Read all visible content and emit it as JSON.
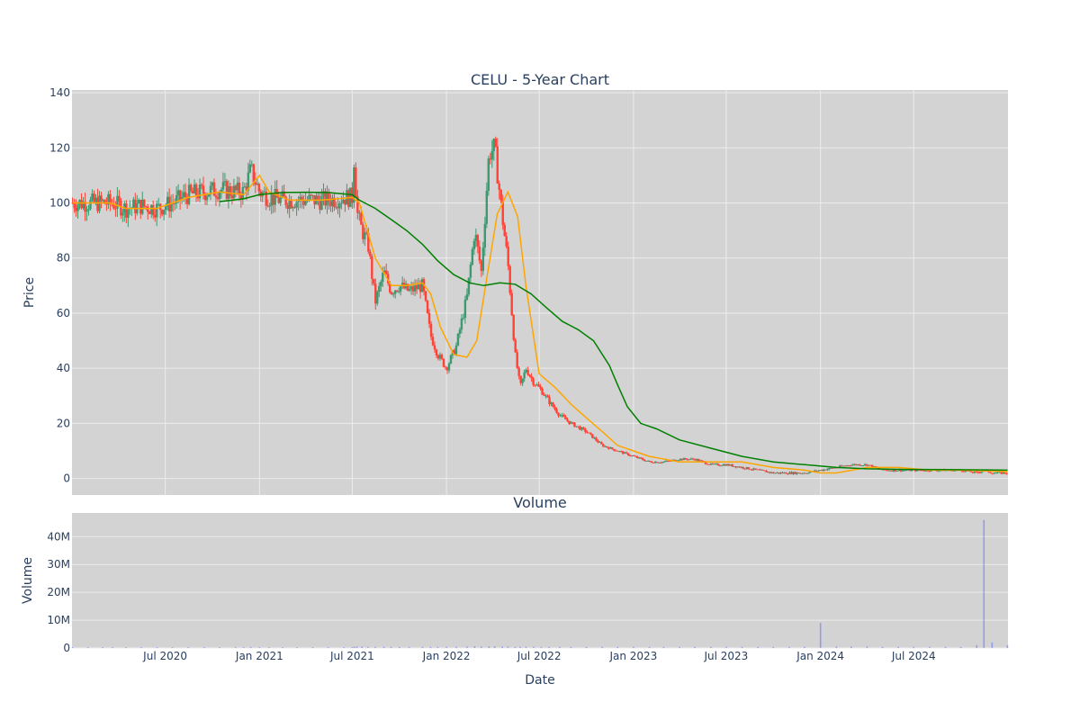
{
  "chart_data": [
    {
      "type": "candlestick",
      "title": "CELU - 5-Year Chart",
      "ylabel": "Price",
      "ylim": [
        -6,
        141
      ],
      "yticks": [
        0,
        20,
        40,
        60,
        80,
        100,
        120,
        140
      ],
      "grid": true,
      "up_color": "#3d9970",
      "down_color": "#ff4136",
      "series": [
        {
          "kind": "price",
          "x": [
            "2020-01-02",
            "2020-02-01",
            "2020-03-01",
            "2020-03-20",
            "2020-04-15",
            "2020-05-15",
            "2020-06-15",
            "2020-07-15",
            "2020-08-15",
            "2020-09-15",
            "2020-10-15",
            "2020-11-15",
            "2020-12-01",
            "2020-12-15",
            "2021-01-01",
            "2021-01-20",
            "2021-02-15",
            "2021-03-15",
            "2021-04-15",
            "2021-05-15",
            "2021-06-15",
            "2021-07-01",
            "2021-07-05",
            "2021-07-10",
            "2021-07-20",
            "2021-08-01",
            "2021-08-15",
            "2021-09-01",
            "2021-09-15",
            "2021-10-01",
            "2021-10-20",
            "2021-11-15",
            "2021-12-01",
            "2021-12-15",
            "2022-01-01",
            "2022-01-20",
            "2022-02-10",
            "2022-02-25",
            "2022-03-10",
            "2022-03-25",
            "2022-04-05",
            "2022-04-20",
            "2022-05-01",
            "2022-05-15",
            "2022-05-25",
            "2022-06-05",
            "2022-06-20",
            "2022-07-05",
            "2022-07-20",
            "2022-08-10",
            "2022-09-01",
            "2022-10-01",
            "2022-11-01",
            "2022-12-01",
            "2023-01-01",
            "2023-02-01",
            "2023-03-01",
            "2023-04-01",
            "2023-05-01",
            "2023-06-01",
            "2023-07-01",
            "2023-08-01",
            "2023-09-01",
            "2023-10-01",
            "2023-11-01",
            "2023-12-01",
            "2024-01-01",
            "2024-02-01",
            "2024-03-01",
            "2024-04-01",
            "2024-05-01",
            "2024-06-01",
            "2024-07-01",
            "2024-08-01",
            "2024-09-01",
            "2024-10-01",
            "2024-11-01",
            "2024-11-15",
            "2024-12-01",
            "2024-12-31"
          ],
          "y": [
            100,
            100,
            100,
            100,
            98,
            99,
            98,
            100,
            103,
            104,
            105,
            104,
            104,
            112,
            104,
            102,
            101,
            101,
            101,
            101,
            102,
            102,
            118,
            97,
            90,
            85,
            64,
            75,
            68,
            70,
            68,
            70,
            52,
            45,
            40,
            48,
            66,
            90,
            75,
            118,
            120,
            95,
            78,
            45,
            33,
            40,
            35,
            32,
            28,
            23,
            20,
            17,
            12,
            10,
            8,
            6,
            6,
            7,
            7,
            5,
            5,
            4,
            3,
            2,
            2,
            2,
            3,
            4,
            5,
            5,
            3,
            3,
            3,
            3,
            3,
            3,
            2,
            3,
            2,
            2
          ],
          "volume": [
            0.3,
            0.3,
            0.3,
            0.3,
            0.3,
            0.3,
            0.3,
            0.3,
            0.3,
            0.3,
            0.3,
            0.3,
            0.3,
            0.4,
            0.3,
            0.3,
            0.3,
            0.3,
            0.3,
            0.3,
            0.3,
            0.3,
            0.5,
            0.5,
            0.5,
            0.4,
            0.4,
            0.4,
            0.4,
            0.4,
            0.4,
            0.4,
            0.4,
            0.4,
            0.4,
            0.4,
            0.5,
            0.6,
            0.5,
            0.6,
            0.6,
            0.5,
            0.5,
            0.4,
            0.4,
            0.4,
            0.4,
            0.4,
            0.4,
            0.4,
            0.4,
            0.4,
            0.4,
            0.4,
            0.4,
            0.4,
            0.4,
            0.4,
            0.4,
            0.4,
            0.4,
            0.4,
            0.4,
            0.4,
            0.4,
            0.4,
            9.0,
            0.5,
            0.5,
            0.5,
            0.4,
            0.4,
            0.4,
            0.4,
            0.4,
            0.4,
            1.0,
            46.0,
            2.0,
            1.0
          ]
        },
        {
          "kind": "ma-short",
          "color": "#ffa500",
          "x": [
            "2020-01-02",
            "2020-03-15",
            "2020-04-15",
            "2020-06-15",
            "2020-08-15",
            "2020-10-15",
            "2020-12-01",
            "2021-01-01",
            "2021-01-20",
            "2021-03-01",
            "2021-05-01",
            "2021-07-01",
            "2021-07-15",
            "2021-08-15",
            "2021-09-15",
            "2021-10-15",
            "2021-11-15",
            "2021-12-01",
            "2021-12-20",
            "2022-01-15",
            "2022-02-10",
            "2022-03-01",
            "2022-03-20",
            "2022-04-10",
            "2022-05-01",
            "2022-05-20",
            "2022-06-05",
            "2022-07-01",
            "2022-08-01",
            "2022-09-01",
            "2022-10-01",
            "2022-11-01",
            "2022-12-01",
            "2023-01-01",
            "2023-02-01",
            "2023-04-01",
            "2023-06-01",
            "2023-08-01",
            "2023-10-01",
            "2023-12-01",
            "2024-01-01",
            "2024-02-01",
            "2024-04-01",
            "2024-06-01",
            "2024-08-01",
            "2024-10-01",
            "2024-12-31"
          ],
          "y": [
            100,
            100,
            98,
            98,
            102,
            104,
            103,
            110,
            104,
            101,
            101,
            102,
            100,
            80,
            70,
            70,
            71,
            67,
            55,
            45,
            44,
            50,
            72,
            96,
            104,
            95,
            70,
            38,
            33,
            27,
            22,
            17,
            12,
            10,
            8,
            6,
            6,
            6,
            4,
            3,
            2,
            2,
            4,
            4,
            3,
            3,
            2.5
          ]
        },
        {
          "kind": "ma-long",
          "color": "#008000",
          "x": [
            "2020-10-15",
            "2020-12-01",
            "2021-01-01",
            "2021-02-15",
            "2021-04-01",
            "2021-05-15",
            "2021-07-01",
            "2021-07-15",
            "2021-08-15",
            "2021-09-15",
            "2021-10-15",
            "2021-11-15",
            "2021-12-15",
            "2022-01-15",
            "2022-02-15",
            "2022-03-15",
            "2022-04-15",
            "2022-05-15",
            "2022-06-15",
            "2022-07-15",
            "2022-08-15",
            "2022-09-15",
            "2022-10-15",
            "2022-11-15",
            "2022-12-01",
            "2022-12-20",
            "2023-01-15",
            "2023-02-15",
            "2023-04-01",
            "2023-06-01",
            "2023-08-01",
            "2023-10-01",
            "2023-12-01",
            "2024-02-01",
            "2024-04-01",
            "2024-06-01",
            "2024-09-01",
            "2024-12-31"
          ],
          "y": [
            100.5,
            101.5,
            103,
            103.8,
            103.9,
            103.8,
            103,
            101,
            98,
            94,
            90,
            85,
            79,
            74,
            71,
            70,
            71,
            70.5,
            67,
            62,
            57,
            54,
            50,
            41,
            34,
            26,
            20,
            18,
            14,
            11,
            8,
            6,
            5,
            4,
            3.5,
            3.3,
            3.2,
            3
          ]
        }
      ]
    },
    {
      "type": "bar",
      "title": "Volume",
      "xlabel": "Date",
      "ylabel": "Volume",
      "ylim": [
        0,
        48.5
      ],
      "yticks": [
        "0",
        "10M",
        "20M",
        "30M",
        "40M"
      ],
      "xticks": [
        "Jul 2020",
        "Jan 2021",
        "Jul 2021",
        "Jan 2022",
        "Jul 2022",
        "Jan 2023",
        "Jul 2023",
        "Jan 2024",
        "Jul 2024"
      ],
      "color": "#636efa"
    }
  ],
  "x_range": [
    "2020-01-01",
    "2025-01-01"
  ]
}
